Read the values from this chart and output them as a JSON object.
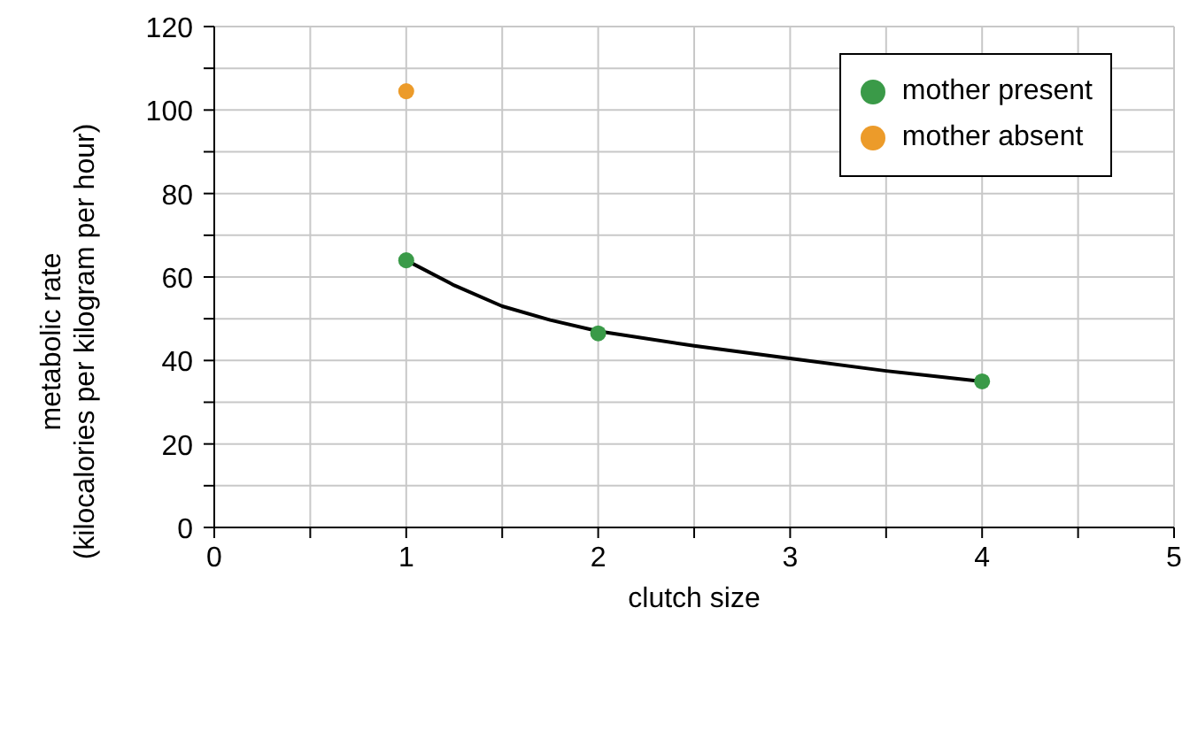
{
  "chart_data": {
    "type": "scatter",
    "xlabel": "clutch size",
    "ylabel": "metabolic rate\n(kilocalories per kilogram per hour)",
    "xlim": [
      0,
      5
    ],
    "xticks": [
      0,
      {
        "value": 0.5,
        "label": null
      },
      1,
      {
        "value": 1.5,
        "label": null
      },
      2,
      {
        "value": 2.5,
        "label": null
      },
      3,
      {
        "value": 3.5,
        "label": null
      },
      4,
      {
        "value": 4.5,
        "label": null
      },
      5
    ],
    "ylim": [
      0,
      120
    ],
    "yticks": [
      0,
      {
        "value": 10,
        "label": null
      },
      20,
      {
        "value": 30,
        "label": null
      },
      40,
      {
        "value": 50,
        "label": null
      },
      60,
      {
        "value": 70,
        "label": null
      },
      80,
      {
        "value": 90,
        "label": null
      },
      100,
      {
        "value": 110,
        "label": null
      },
      120
    ],
    "grid": true,
    "legend": "top right",
    "marker": "circle",
    "series": [
      {
        "name": "mother present",
        "color": "#3a9a48",
        "x": [
          1,
          2,
          4
        ],
        "values": [
          64,
          46.5,
          35
        ]
      },
      {
        "name": "mother absent",
        "color": "#ec9b2a",
        "x": [
          1
        ],
        "values": [
          104.5
        ]
      },
      {
        "type": "line",
        "color": "#000000",
        "line_style": "solid",
        "marker": "none",
        "x": [
          1,
          1.25,
          1.5,
          1.75,
          2,
          2.5,
          3,
          3.5,
          4
        ],
        "values": [
          64,
          58,
          53,
          49.7,
          47,
          43.5,
          40.5,
          37.5,
          35
        ]
      }
    ]
  }
}
